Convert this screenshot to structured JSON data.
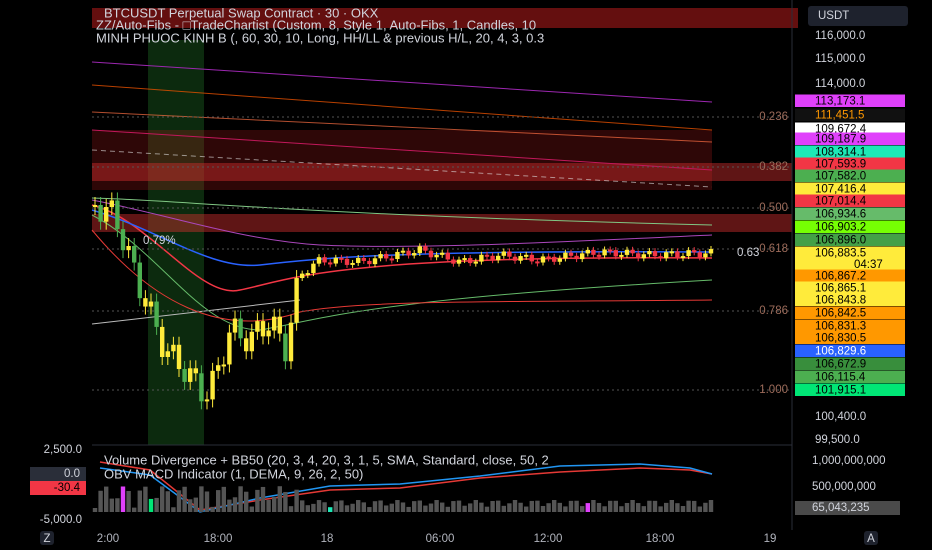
{
  "header": {
    "symbol": "BTCUSDT Perpetual Swap Contract · 30 · OKX",
    "indicator_1": "ZZ/Auto-Fibs - □TradeChartist (Custom, 8, Style 1, Auto-Fibs, 1, Candles, 10",
    "indicator_2": "MINH PHUOC KINH B (, 60, 30, 10, Long, HH/LL & previous H/L, 20, 4, 3, 0.3"
  },
  "currency": "USDT",
  "price_axis": [
    "116,000.0",
    "115,000.0",
    "114,000.0",
    "100,400.0",
    "99,500.0"
  ],
  "price_tags": [
    {
      "text": "113,173.1",
      "bg": "#e040fb",
      "fg": "#000"
    },
    {
      "text": "111,451.5",
      "bg": "#111",
      "fg": "#ff9800"
    },
    {
      "text": "109,672.4",
      "bg": "#ffffff",
      "fg": "#000"
    },
    {
      "text": "109,187.9",
      "bg": "#e040fb",
      "fg": "#000"
    },
    {
      "text": "108,314.1",
      "bg": "#1de9b6",
      "fg": "#000"
    },
    {
      "text": "107,593.9",
      "bg": "#f23645",
      "fg": "#000"
    },
    {
      "text": "107,582.0",
      "bg": "#4caf50",
      "fg": "#000"
    },
    {
      "text": "107,416.4",
      "bg": "#ffeb3b",
      "fg": "#000"
    },
    {
      "text": "107,014.4",
      "bg": "#f23645",
      "fg": "#000"
    },
    {
      "text": "106,934.6",
      "bg": "#66bb6a",
      "fg": "#000"
    },
    {
      "text": "106,903.2",
      "bg": "#76ff03",
      "fg": "#000"
    },
    {
      "text": "106,896.0",
      "bg": "#43a047",
      "fg": "#000"
    },
    {
      "text": "106,883.5",
      "bg": "#ffeb3b",
      "fg": "#000"
    },
    {
      "text": "106,867.2",
      "bg": "#ff9800",
      "fg": "#000"
    },
    {
      "text": "106,865.1",
      "bg": "#ffeb3b",
      "fg": "#000"
    },
    {
      "text": "106,843.8",
      "bg": "#ffeb3b",
      "fg": "#000"
    },
    {
      "text": "106,842.5",
      "bg": "#ff9800",
      "fg": "#000"
    },
    {
      "text": "106,831.3",
      "bg": "#ff9800",
      "fg": "#000"
    },
    {
      "text": "106,830.5",
      "bg": "#ff9800",
      "fg": "#000"
    },
    {
      "text": "106,829.6",
      "bg": "#2962ff",
      "fg": "#fff"
    },
    {
      "text": "106,672.9",
      "bg": "#388e3c",
      "fg": "#000"
    },
    {
      "text": "106,115.4",
      "bg": "#4caf50",
      "fg": "#000"
    },
    {
      "text": "101,915.1",
      "bg": "#00e676",
      "fg": "#000"
    }
  ],
  "countdown": "04:37",
  "fib_levels": [
    "0.236",
    "0.382",
    "0.500",
    "0.618",
    "0.786",
    "1.000"
  ],
  "chart_labels": [
    "0.79%",
    "0.63"
  ],
  "time_axis": [
    "2:00",
    "18:00",
    "18",
    "06:00",
    "12:00",
    "18:00",
    "19"
  ],
  "lower_pane": {
    "indicator_1": "Volume Divergence + BB50 (20, 3, 4, 20, 3, 1, 5, SMA, Standard, close, 50, 2",
    "indicator_2": "OBV MACD Indicator (1, DEMA, 9, 26, 2, 50)",
    "volume_axis": [
      "1,000,000,000",
      "500,000,000"
    ],
    "volume_tag": "65,043,235",
    "osc_axis": [
      "2,500.0",
      "-5,000.0"
    ],
    "osc_tags": [
      "0.0",
      "-30.4"
    ]
  },
  "scale_buttons": [
    "Z",
    "A"
  ]
}
